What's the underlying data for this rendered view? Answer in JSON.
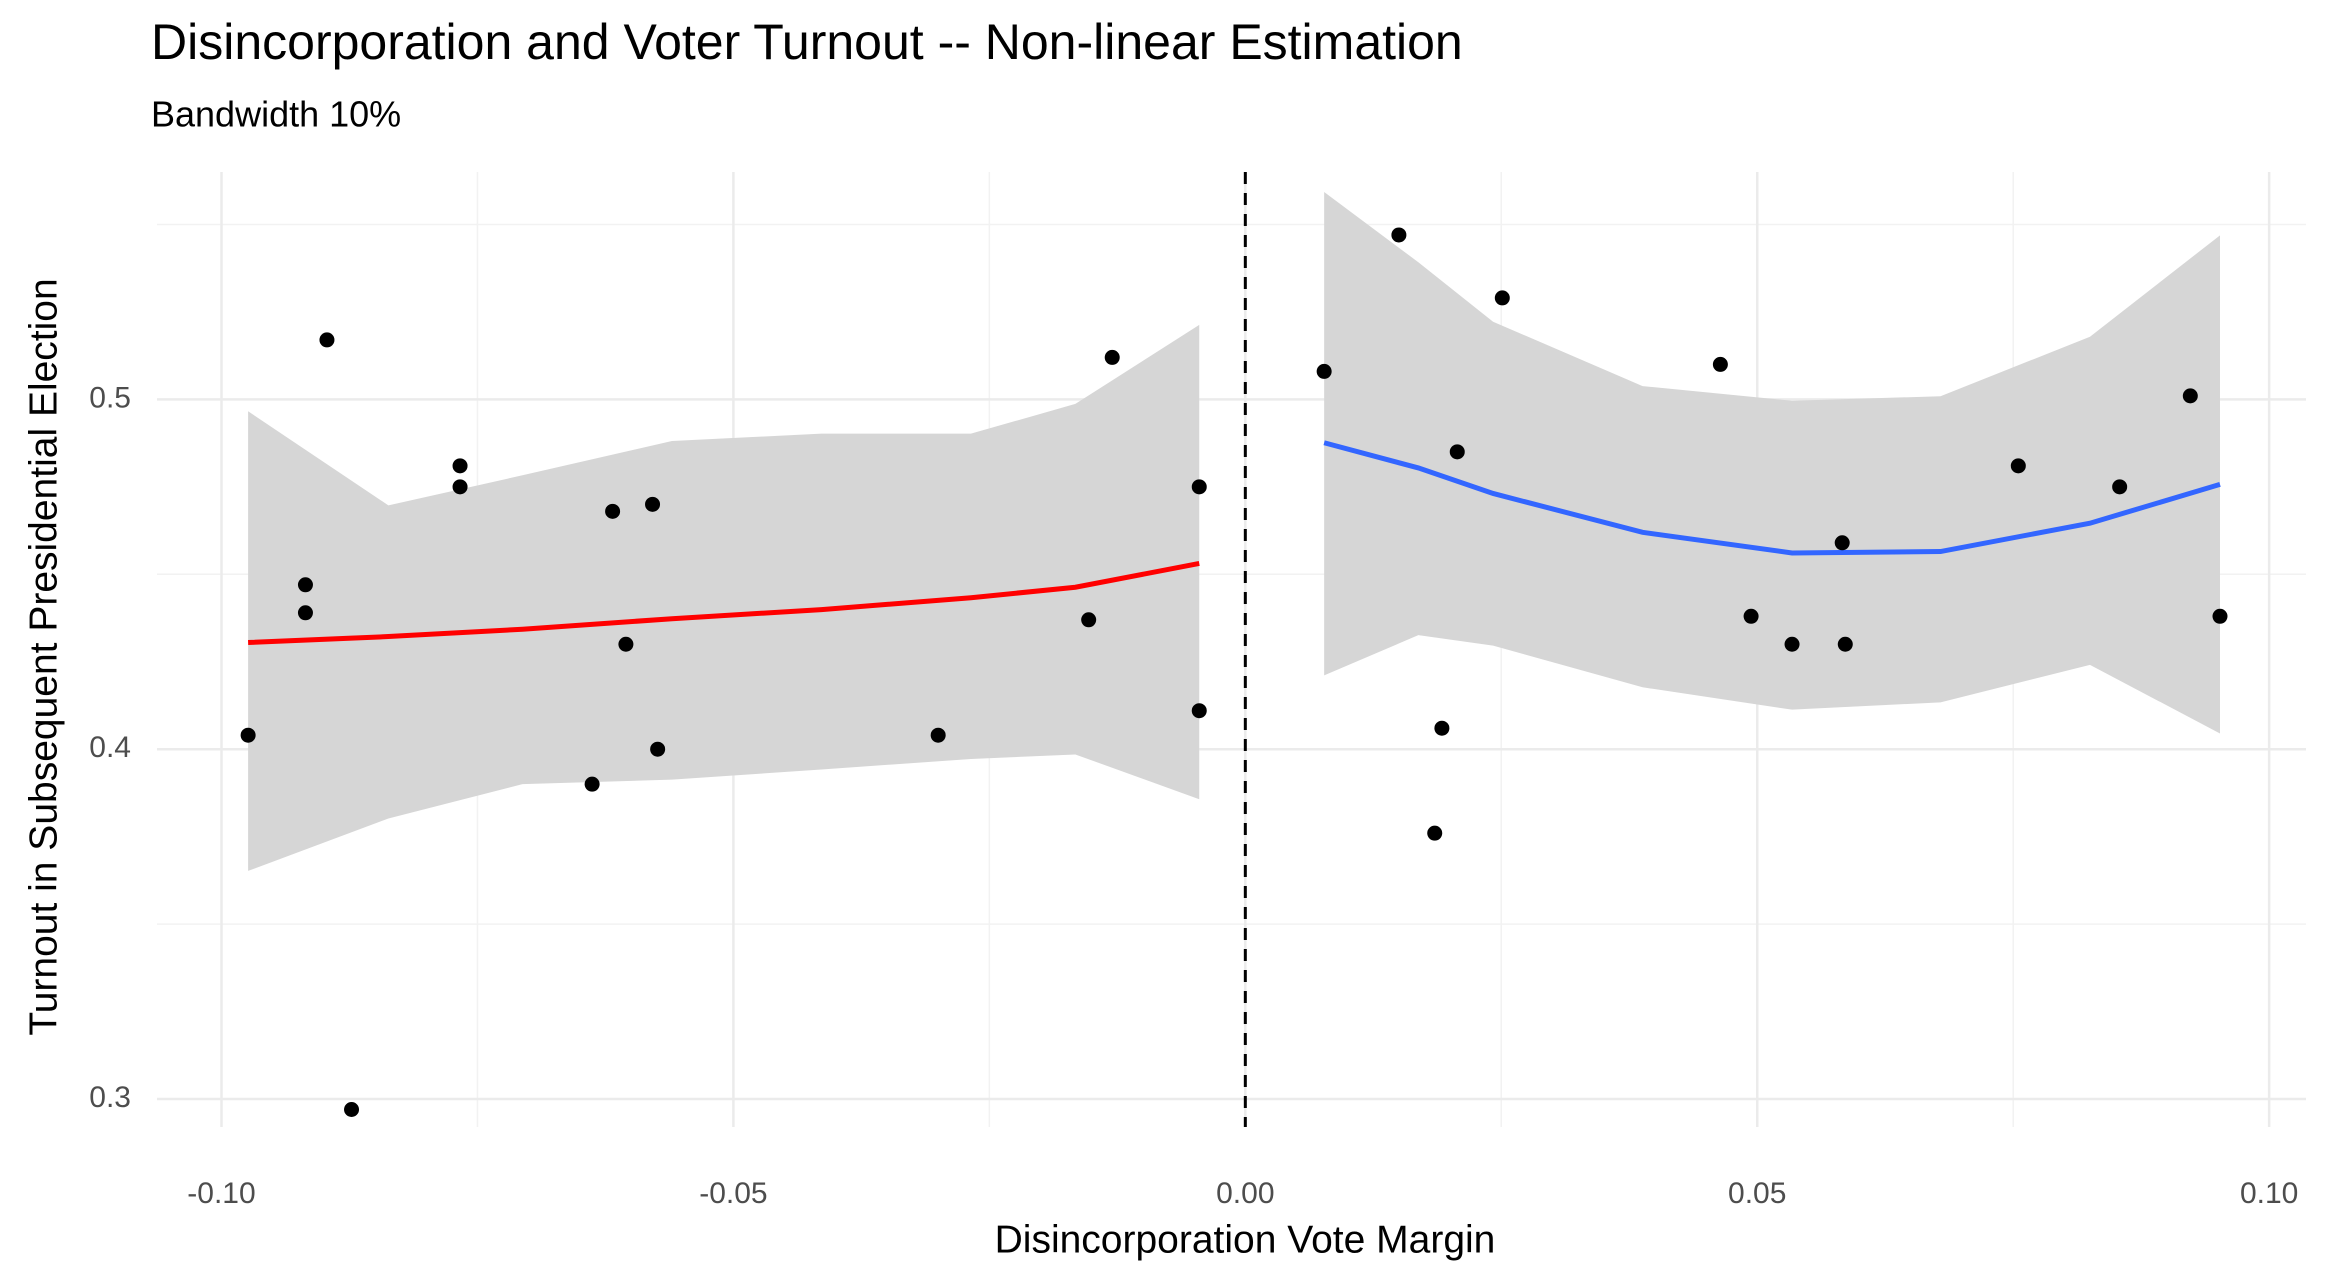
{
  "chart_data": {
    "type": "scatter",
    "title": "Disincorporation and Voter Turnout -- Non-linear Estimation",
    "subtitle": "Bandwidth 10%",
    "x_label": "Disincorporation Vote Margin",
    "y_label": "Turnout in Subsequent Presidential Election",
    "xlim": [
      -0.1063,
      0.1036
    ],
    "ylim": [
      0.292,
      0.565
    ],
    "xticks": [
      {
        "value": -0.1,
        "label": "-0.10"
      },
      {
        "value": -0.05,
        "label": "-0.05"
      },
      {
        "value": 0,
        "label": "0.00"
      },
      {
        "value": 0.05,
        "label": "0.05"
      },
      {
        "value": 0.1,
        "label": "0.10"
      }
    ],
    "yticks": [
      0.3,
      0.4,
      0.5
    ],
    "x_minor_grid": [
      -0.075,
      -0.025,
      0.025,
      0.075
    ],
    "y_minor_grid": [
      0.35,
      0.45,
      0.55
    ],
    "grid": true,
    "vline": 0,
    "series": [
      {
        "color": "#000000",
        "x": [
          -0.0974,
          -0.0897,
          -0.0918,
          -0.0918,
          -0.0873,
          -0.0767,
          -0.0767,
          -0.0638,
          -0.0618,
          -0.0605,
          -0.0579,
          -0.0574,
          -0.03,
          -0.0153,
          -0.013,
          -0.0045,
          -0.0045,
          0.0077,
          0.015,
          0.0207,
          0.0192,
          0.0185,
          0.0251,
          0.0464,
          0.0494,
          0.0534,
          0.0583,
          0.0586,
          0.0755,
          0.0854,
          0.0923,
          0.0952
        ],
        "values": [
          0.404,
          0.517,
          0.447,
          0.439,
          0.297,
          0.481,
          0.475,
          0.39,
          0.468,
          0.43,
          0.47,
          0.4,
          0.404,
          0.437,
          0.512,
          0.475,
          0.411,
          0.508,
          0.547,
          0.485,
          0.406,
          0.376,
          0.529,
          0.51,
          0.438,
          0.43,
          0.459,
          0.43,
          0.481,
          0.475,
          0.501,
          0.438
        ]
      }
    ],
    "fits": [
      {
        "color": "#ff0000",
        "band_color": "#d6d6d6",
        "x": [
          -0.0974,
          -0.0837,
          -0.0706,
          -0.056,
          -0.0414,
          -0.0268,
          -0.0166,
          -0.0045
        ],
        "values": [
          0.4305,
          0.4322,
          0.4343,
          0.4373,
          0.4399,
          0.4433,
          0.4463,
          0.4531
        ],
        "upper": [
          0.4966,
          0.4697,
          0.4783,
          0.4881,
          0.4902,
          0.4902,
          0.4987,
          0.5213
        ],
        "lower": [
          0.3652,
          0.3802,
          0.39,
          0.3913,
          0.3942,
          0.3972,
          0.3985,
          0.3857
        ]
      },
      {
        "color": "#3366ff",
        "band_color": "#d6d6d6",
        "x": [
          0.0077,
          0.0169,
          0.0242,
          0.0388,
          0.0534,
          0.0679,
          0.0825,
          0.0952
        ],
        "values": [
          0.4876,
          0.4804,
          0.4731,
          0.462,
          0.4561,
          0.4565,
          0.4646,
          0.4757
        ],
        "upper": [
          0.5593,
          0.5392,
          0.5222,
          0.5038,
          0.4996,
          0.5009,
          0.5179,
          0.5469
        ],
        "lower": [
          0.4211,
          0.4326,
          0.4296,
          0.4177,
          0.4113,
          0.4134,
          0.4241,
          0.4045
        ]
      }
    ]
  }
}
